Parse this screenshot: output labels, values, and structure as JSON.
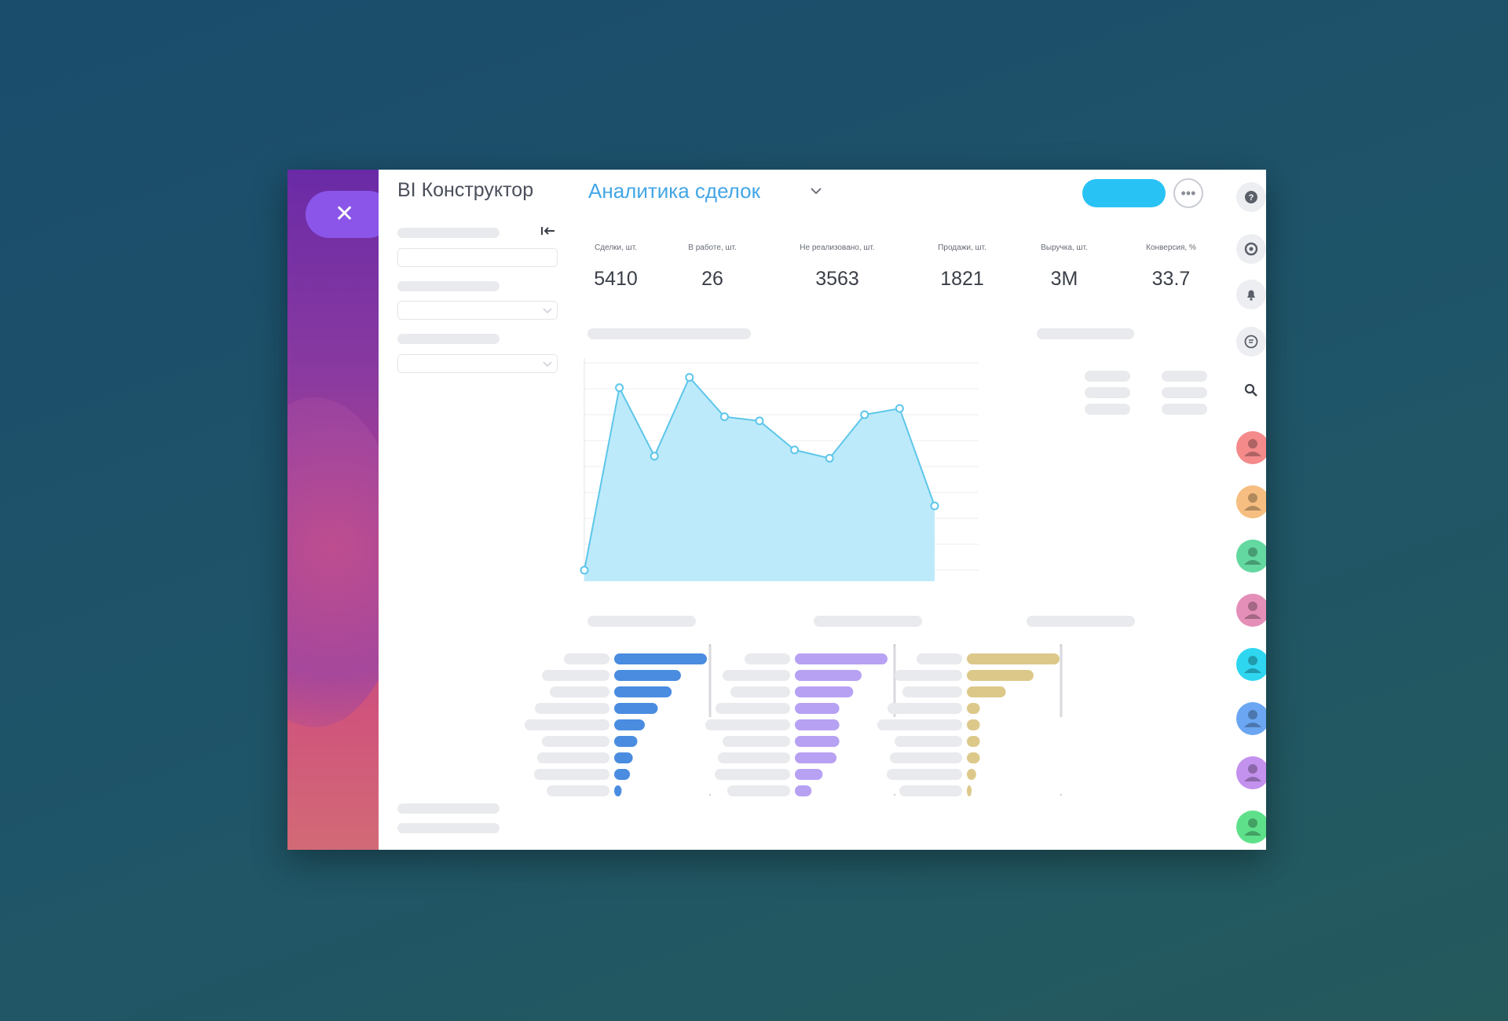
{
  "header": {
    "app_title": "BI Конструктор",
    "report_title": "Аналитика сделок"
  },
  "kpis": [
    {
      "label": "Сделки, шт.",
      "value": "5410"
    },
    {
      "label": "В работе, шт.",
      "value": "26"
    },
    {
      "label": "Не реализовано, шт.",
      "value": "3563"
    },
    {
      "label": "Продажи, шт.",
      "value": "1821"
    },
    {
      "label": "Выручка, шт.",
      "value": "3М"
    },
    {
      "label": "Конверсия, %",
      "value": "33.7"
    }
  ],
  "colors": {
    "accent": "#42a6e6",
    "pill": "#29c2f5",
    "close_button": "#8a55e8",
    "area_fill": "#bdeafa",
    "area_line": "#5cc6ea",
    "bars_1": "#4a8ce0",
    "bars_2": "#b7a1f3",
    "bars_3": "#dcc98a"
  },
  "chart_data": [
    {
      "type": "area",
      "y": [
        0,
        88,
        55,
        93,
        74,
        72,
        58,
        54,
        75,
        78,
        31
      ],
      "grid": true,
      "note_ylim": [
        0,
        100
      ]
    },
    {
      "type": "bar",
      "orientation": "horizontal",
      "values": [
        100,
        72,
        62,
        47,
        33,
        25,
        20,
        17,
        8
      ]
    },
    {
      "type": "bar",
      "orientation": "horizontal",
      "values": [
        100,
        72,
        63,
        48,
        48,
        48,
        45,
        30,
        18
      ]
    },
    {
      "type": "bar",
      "orientation": "horizontal",
      "values": [
        100,
        72,
        42,
        14,
        14,
        14,
        14,
        10,
        4
      ]
    }
  ],
  "rail": {
    "icons": [
      "help-icon",
      "sync-icon",
      "bell-icon",
      "chat-icon",
      "search-icon"
    ],
    "avatars": [
      "#f48a8a",
      "#f6be80",
      "#63d8a0",
      "#e48fb8",
      "#2fd6f0",
      "#6aa6f2",
      "#c391ee",
      "#5ee08a"
    ]
  }
}
